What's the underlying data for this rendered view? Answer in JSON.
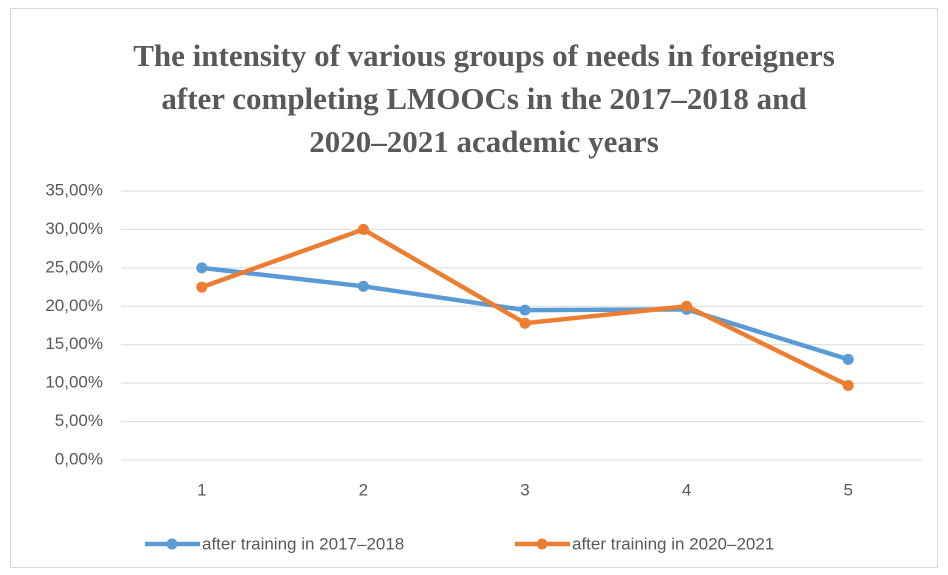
{
  "chart_data": {
    "type": "line",
    "title": "The intensity of various groups of needs in foreigners after completing LMOOCs in the 2017–2018 and 2020–2021 academic years",
    "categories": [
      "1",
      "2",
      "3",
      "4",
      "5"
    ],
    "series": [
      {
        "name": "after training in 2017–2018",
        "color": "#5b9bd5",
        "values": [
          25.0,
          22.6,
          19.5,
          19.6,
          13.1
        ]
      },
      {
        "name": "after training in 2020–2021",
        "color": "#ed7d31",
        "values": [
          22.5,
          30.0,
          17.8,
          20.0,
          9.7
        ]
      }
    ],
    "ylim": [
      0,
      35
    ],
    "yticks": [
      {
        "value": 0,
        "label": "0,00%"
      },
      {
        "value": 5,
        "label": "5,00%"
      },
      {
        "value": 10,
        "label": "10,00%"
      },
      {
        "value": 15,
        "label": "15,00%"
      },
      {
        "value": 20,
        "label": "20,00%"
      },
      {
        "value": 25,
        "label": "25,00%"
      },
      {
        "value": 30,
        "label": "30,00%"
      },
      {
        "value": 35,
        "label": "35,00%"
      }
    ],
    "grid": true,
    "legend": "bottom"
  }
}
